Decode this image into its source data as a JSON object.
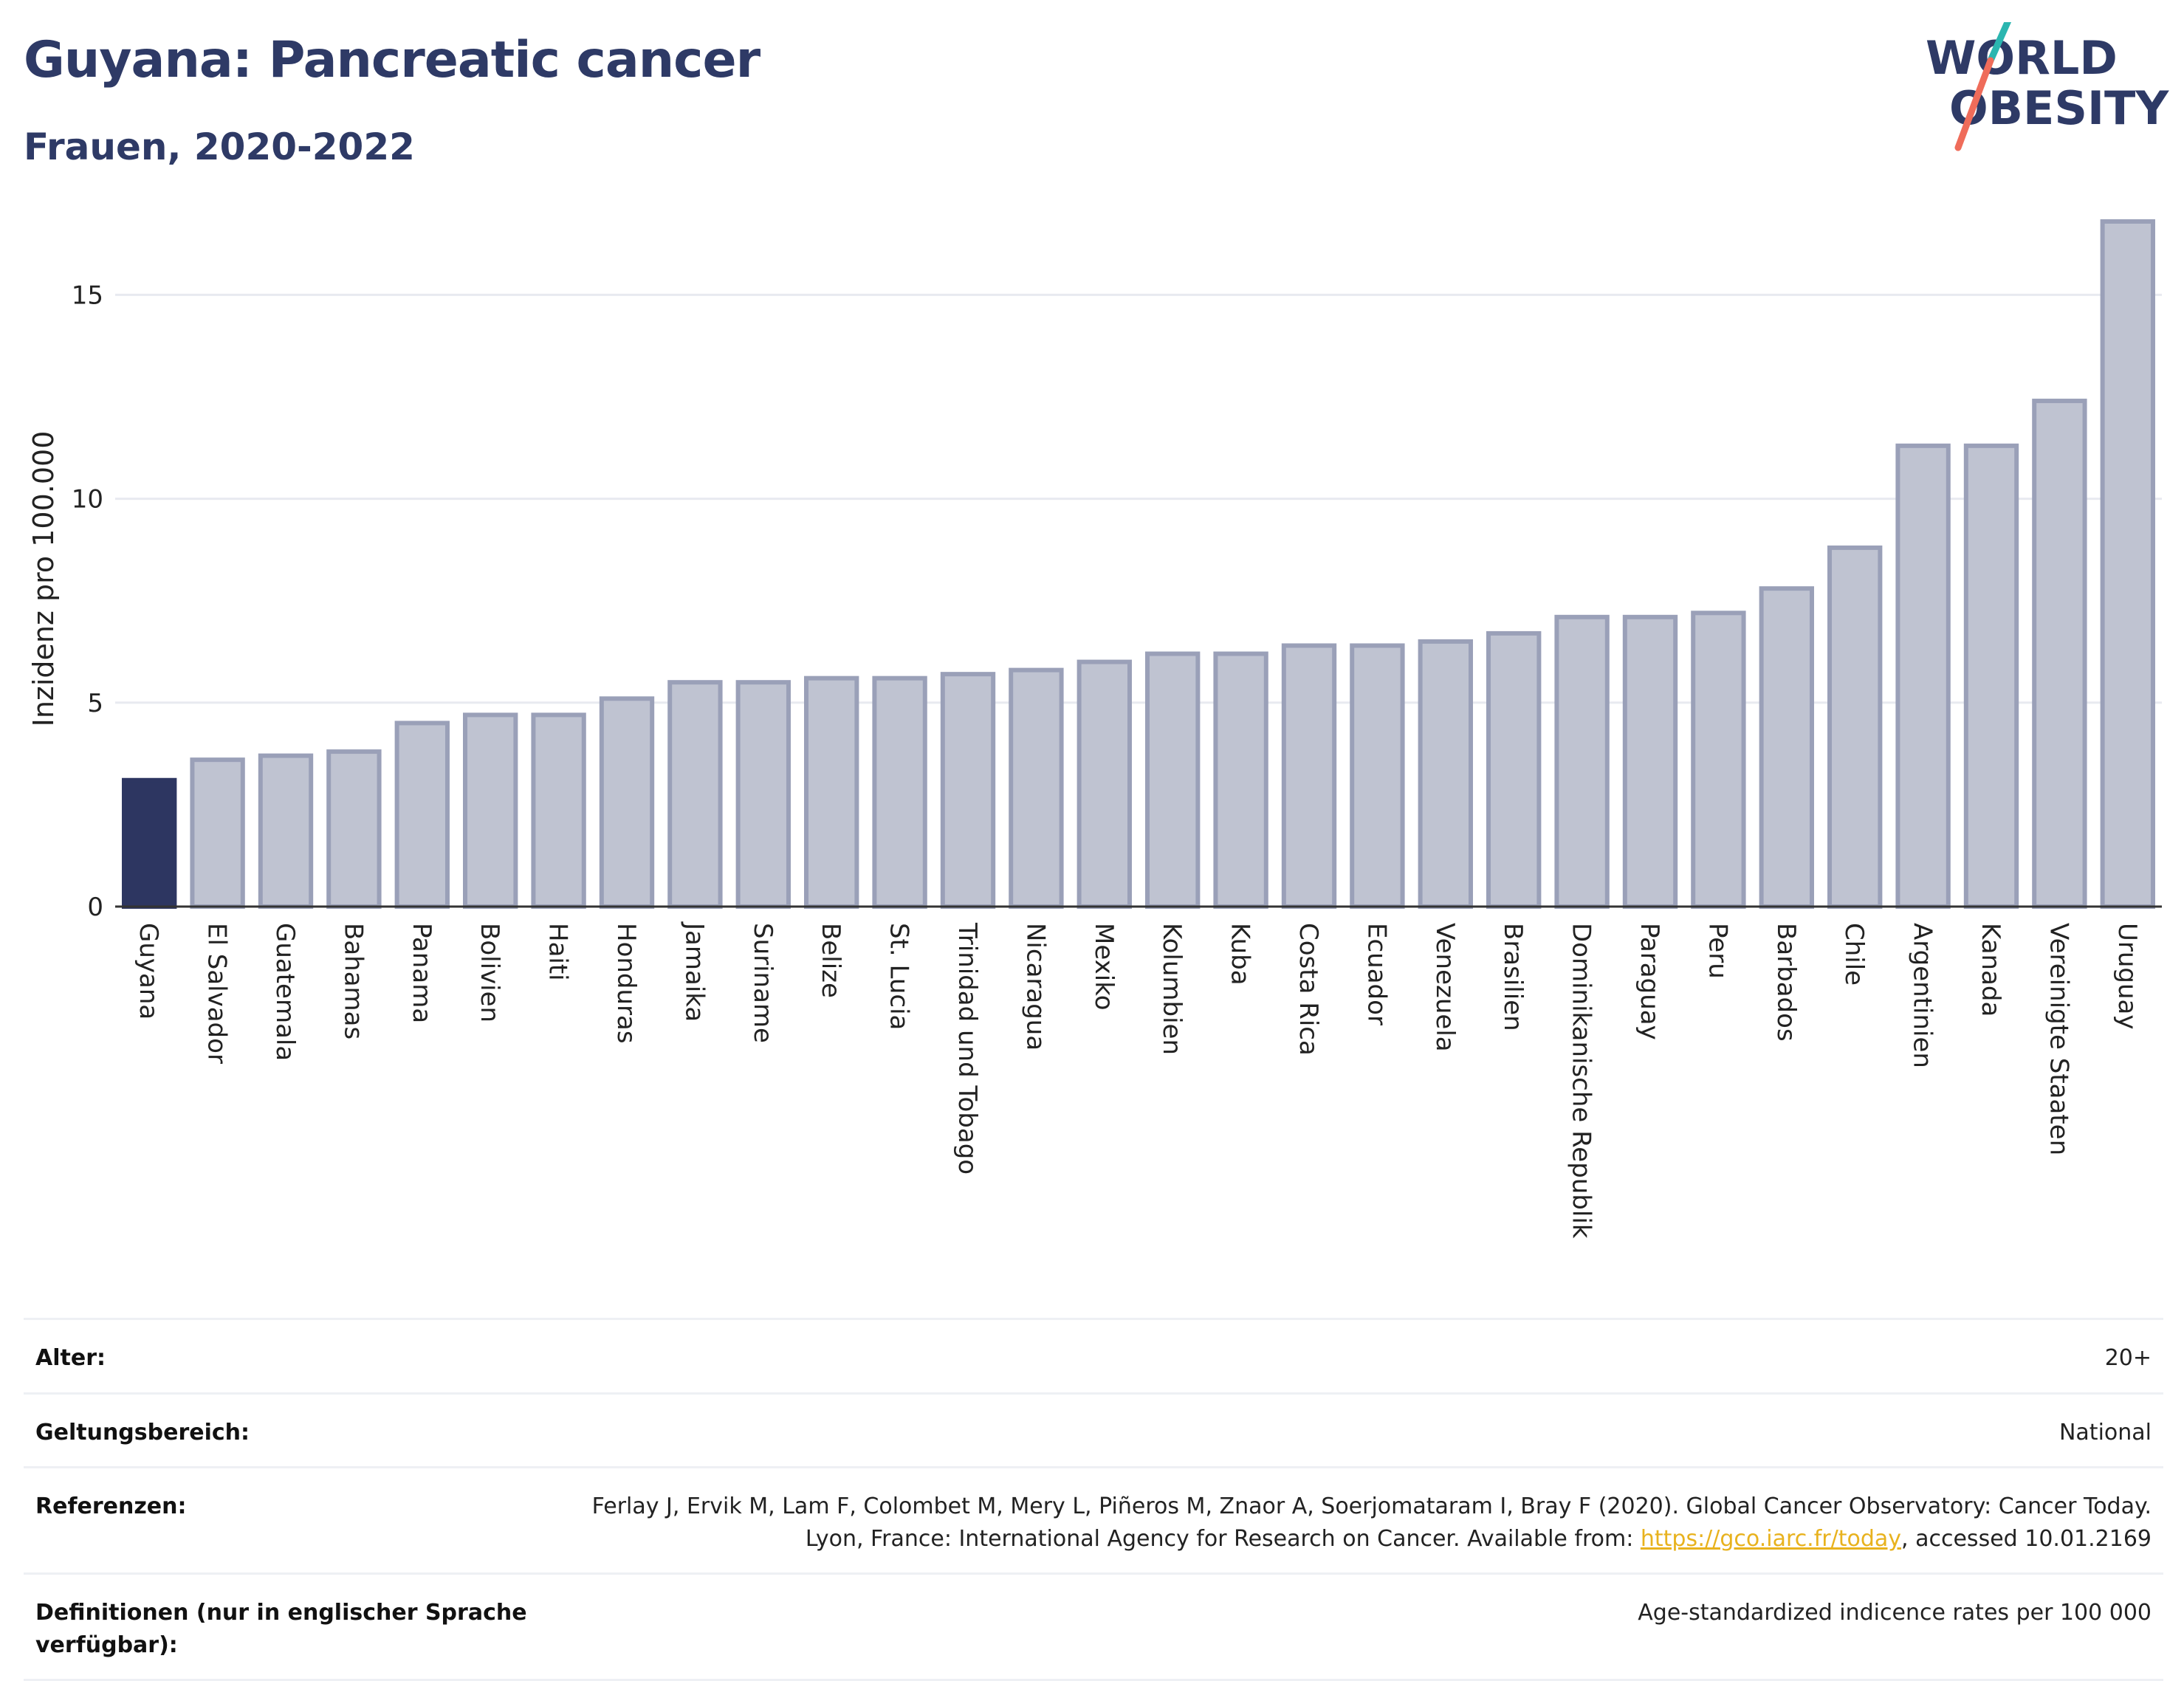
{
  "header": {
    "title": "Guyana: Pancreatic cancer",
    "subtitle": "Frauen, 2020-2022"
  },
  "logo": {
    "line1": "WORLD",
    "line2": "OBESITY"
  },
  "colors": {
    "title": "#2e3a66",
    "highlight_bar": "#2d3661",
    "bar_fill": "#bfc3d1",
    "bar_stroke": "#9aa0b8",
    "logo_teal": "#2bb6b0",
    "logo_coral": "#ef6c5a",
    "link": "#e8b21e"
  },
  "chart_data": {
    "type": "bar",
    "ylabel": "Inzidenz pro 100.000",
    "ylim": [
      0,
      16.8
    ],
    "yticks": [
      0,
      5,
      10,
      15
    ],
    "grid": true,
    "highlight": "Guyana",
    "categories": [
      "Guyana",
      "El Salvador",
      "Guatemala",
      "Bahamas",
      "Panama",
      "Bolivien",
      "Haiti",
      "Honduras",
      "Jamaika",
      "Suriname",
      "Belize",
      "St. Lucia",
      "Trinidad und Tobago",
      "Nicaragua",
      "Mexiko",
      "Kolumbien",
      "Kuba",
      "Costa Rica",
      "Ecuador",
      "Venezuela",
      "Brasilien",
      "Dominikanische Republik",
      "Paraguay",
      "Peru",
      "Barbados",
      "Chile",
      "Argentinien",
      "Kanada",
      "Vereinigte Staaten",
      "Uruguay"
    ],
    "values": [
      3.1,
      3.6,
      3.7,
      3.8,
      4.5,
      4.7,
      4.7,
      5.1,
      5.5,
      5.5,
      5.6,
      5.6,
      5.7,
      5.8,
      6.0,
      6.2,
      6.2,
      6.4,
      6.4,
      6.5,
      6.7,
      7.1,
      7.1,
      7.2,
      7.8,
      8.8,
      11.3,
      11.3,
      12.4,
      16.8
    ]
  },
  "footer": {
    "rows": [
      {
        "label": "Alter:",
        "value": "20+"
      },
      {
        "label": "Geltungsbereich:",
        "value": "National"
      },
      {
        "label": "Referenzen:",
        "value": "Ferlay J, Ervik M, Lam F, Colombet M, Mery L, Piñeros M, Znaor A, Soerjomataram I, Bray F (2020). Global Cancer Observatory: Cancer Today. Lyon, France: International Agency for Research on Cancer. Available from: ",
        "link": "https://gco.iarc.fr/today",
        "suffix": ", accessed 10.01.2169"
      },
      {
        "label": "Definitionen (nur in englischer Sprache verfügbar):",
        "value": "Age-standardized indicence rates per 100 000"
      }
    ]
  }
}
